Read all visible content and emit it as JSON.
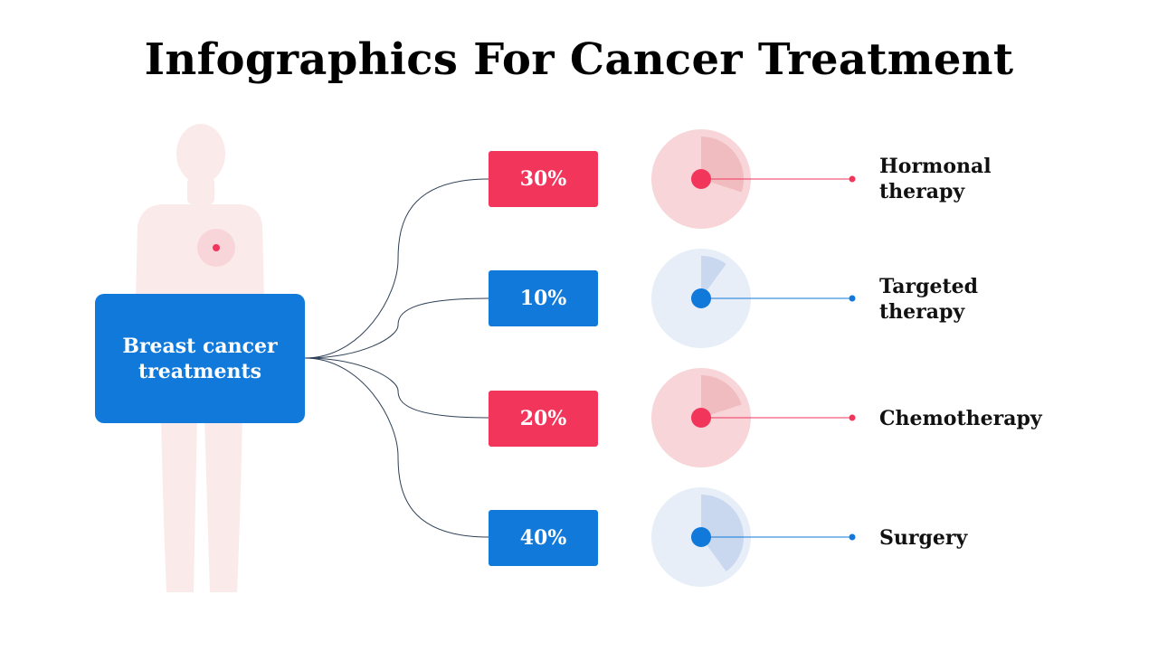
{
  "title": "Infographics For Cancer Treatment",
  "center_label": "Breast cancer treatments",
  "colors": {
    "blue": "#1079DA",
    "red": "#F2355B",
    "body": "#FBEAEA",
    "red_light": "#F8D5D8",
    "red_wedge": "#F0BCC0",
    "blue_light": "#E7EEF8",
    "blue_wedge": "#C9D8EE",
    "connector": "#2E4057"
  },
  "icons": [
    "human-body-icon",
    "tumor-marker-icon"
  ],
  "treatments": [
    {
      "name": "Hormonal therapy",
      "percent": 30,
      "percent_label": "30%",
      "color": "red"
    },
    {
      "name": "Targeted therapy",
      "percent": 10,
      "percent_label": "10%",
      "color": "blue"
    },
    {
      "name": "Chemotherapy",
      "percent": 20,
      "percent_label": "20%",
      "color": "red"
    },
    {
      "name": "Surgery",
      "percent": 40,
      "percent_label": "40%",
      "color": "blue"
    }
  ]
}
